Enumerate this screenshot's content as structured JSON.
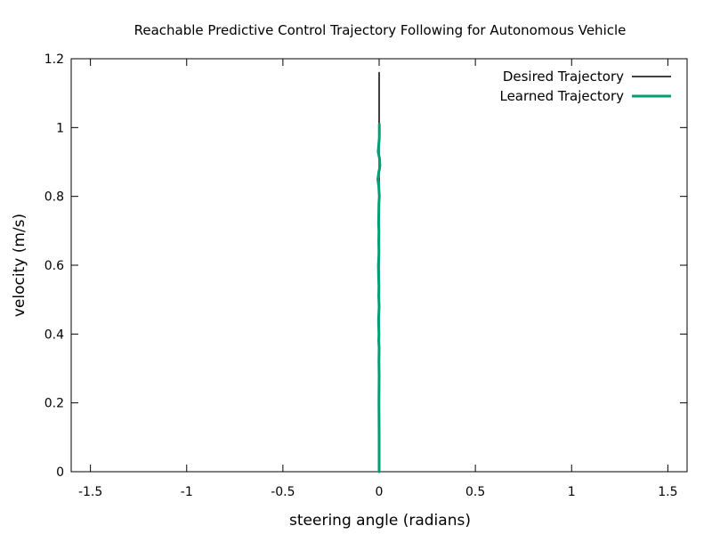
{
  "chart_data": {
    "type": "line",
    "title": "Reachable Predictive Control Trajectory Following for Autonomous Vehicle",
    "xlabel": "steering angle (radians)",
    "ylabel": "velocity (m/s)",
    "xlim": [
      -1.6,
      1.6
    ],
    "ylim": [
      0,
      1.2
    ],
    "xticks": [
      "-1.5",
      "-1",
      "-0.5",
      "0",
      "0.5",
      "1",
      "1.5"
    ],
    "xtick_values": [
      -1.5,
      -1,
      -0.5,
      0,
      0.5,
      1,
      1.5
    ],
    "yticks": [
      "0",
      "0.2",
      "0.4",
      "0.6",
      "0.8",
      "1",
      "1.2"
    ],
    "ytick_values": [
      0,
      0.2,
      0.4,
      0.6,
      0.8,
      1,
      1.2
    ],
    "grid": false,
    "legend_position": "top-right",
    "series": [
      {
        "name": "Desired Trajectory",
        "color": "#000000",
        "x": [
          0,
          0
        ],
        "y": [
          0,
          1.16
        ]
      },
      {
        "name": "Learned Trajectory",
        "color": "#009e73",
        "x": [
          0,
          0,
          -0.001,
          0,
          -0.001,
          0,
          -0.002,
          -0.001,
          -0.003,
          0,
          -0.002,
          -0.001,
          -0.003,
          -0.004,
          -0.002,
          -0.001,
          -0.002,
          -0.001,
          -0.003,
          -0.002,
          -0.001,
          0.001,
          -0.002,
          -0.007,
          -0.004,
          -0.002,
          0.002,
          0.004,
          0.002,
          -0.005,
          -0.002,
          0.001,
          0.001
        ],
        "y": [
          0,
          0.1,
          0.2,
          0.28,
          0.32,
          0.36,
          0.38,
          0.4,
          0.44,
          0.48,
          0.51,
          0.54,
          0.57,
          0.6,
          0.62,
          0.64,
          0.67,
          0.7,
          0.72,
          0.75,
          0.78,
          0.8,
          0.83,
          0.85,
          0.86,
          0.87,
          0.88,
          0.89,
          0.91,
          0.93,
          0.95,
          0.97,
          1.01
        ]
      }
    ]
  }
}
